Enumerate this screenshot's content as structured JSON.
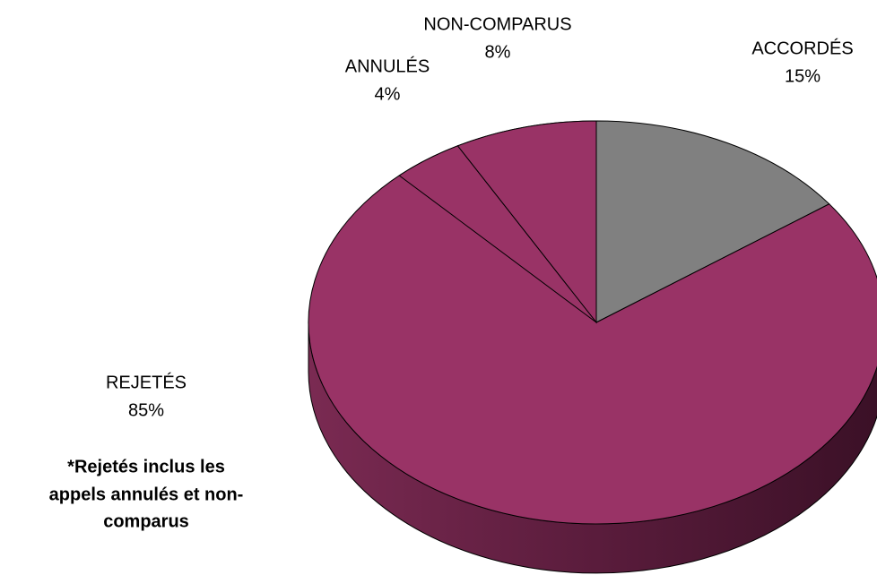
{
  "chart_data": {
    "type": "pie",
    "categories": [
      "ACCORDÉS",
      "REJETÉS",
      "ANNULÉS",
      "NON-COMPARUS"
    ],
    "values": [
      15,
      85,
      4,
      8
    ],
    "value_labels": [
      "15%",
      "85%",
      "4%",
      "8%"
    ],
    "colors": [
      "#808080",
      "#993366",
      "#993366",
      "#993366"
    ],
    "annotation": [
      "*Rejetés inclus les",
      "appels annulés et non-",
      "comparus"
    ]
  }
}
